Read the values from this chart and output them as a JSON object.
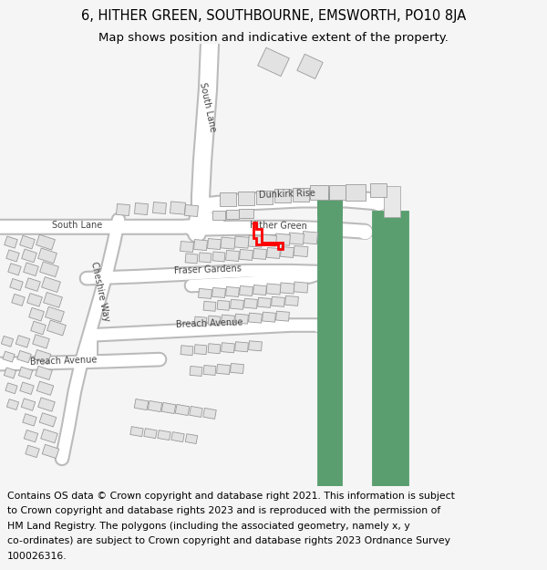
{
  "title_line1": "6, HITHER GREEN, SOUTHBOURNE, EMSWORTH, PO10 8JA",
  "title_line2": "Map shows position and indicative extent of the property.",
  "footer_lines": [
    "Contains OS data © Crown copyright and database right 2021. This information is subject",
    "to Crown copyright and database rights 2023 and is reproduced with the permission of",
    "HM Land Registry. The polygons (including the associated geometry, namely x, y",
    "co-ordinates) are subject to Crown copyright and database rights 2023 Ordnance Survey",
    "100026316."
  ],
  "bg_color": "#f5f5f5",
  "map_bg": "#ffffff",
  "road_color": "#ffffff",
  "road_stroke": "#bbbbbb",
  "building_color": "#e2e2e2",
  "building_stroke": "#999999",
  "green_color": "#5a9e6f",
  "red_color": "#ff0000",
  "title_fontsize": 10.5,
  "subtitle_fontsize": 9.5,
  "footer_fontsize": 7.8,
  "label_fontsize": 7.0
}
